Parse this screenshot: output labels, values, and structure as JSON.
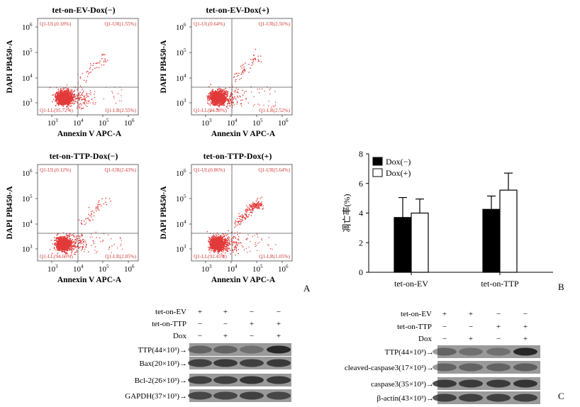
{
  "panel_letters": {
    "a": "A",
    "b": "B",
    "c": "C"
  },
  "colors": {
    "dots": "#e23a3a",
    "quadrant_text": "#d23a3a",
    "bar_dox_minus": "#000000",
    "bar_dox_plus": "#ffffff",
    "blot_band": "#222222",
    "blot_background": "#9a9a9a"
  },
  "flow_panels": [
    {
      "title": "tet-on-EV-Dox(−)",
      "xlabel": "Annexin V APC-A",
      "ylabel": "DAPI PB450-A",
      "quadrants": {
        "ul": "Q1-UL(0.18%)",
        "ur": "Q1-UR(1.55%)",
        "ll": "Q1-LL(95.72%)",
        "lr": "Q1-LR(2.55%)"
      }
    },
    {
      "title": "tet-on-EV-Dox(+)",
      "xlabel": "Annexin V APC-A",
      "ylabel": "DAPI PB450-A",
      "quadrants": {
        "ul": "Q1-UL(0.64%)",
        "ur": "Q1-UR(2.56%)",
        "ll": "Q1-LL(94.28%)",
        "lr": "Q1-LR(2.52%)"
      }
    },
    {
      "title": "tet-on-TTP-Dox(−)",
      "xlabel": "Annexin V APC-A",
      "ylabel": "DAPI PB450-A",
      "quadrants": {
        "ul": "Q1-UL(0.12%)",
        "ur": "Q1-UR(2.43%)",
        "ll": "Q1-LL(94.60%)",
        "lr": "Q1-LR(2.85%)"
      }
    },
    {
      "title": "tet-on-TTP-Dox(+)",
      "xlabel": "Annexin V APC-A",
      "ylabel": "DAPI PB450-A",
      "quadrants": {
        "ul": "Q1-UL(0.86%)",
        "ur": "Q1-UR(5.64%)",
        "ll": "Q1-LL(92.45%)",
        "lr": "Q1-LR(1.05%)"
      }
    }
  ],
  "flow_ticks": {
    "x": [
      {
        "b": "10",
        "e": "3"
      },
      {
        "b": "10",
        "e": "4"
      },
      {
        "b": "10",
        "e": "5"
      },
      {
        "b": "10",
        "e": "6"
      }
    ],
    "y": [
      {
        "b": "10",
        "e": "3"
      },
      {
        "b": "10",
        "e": "4"
      },
      {
        "b": "10",
        "e": "5"
      },
      {
        "b": "10",
        "e": "6"
      }
    ]
  },
  "chart_data": {
    "type": "bar",
    "categories": [
      "tet-on-EV",
      "tet-on-TTP"
    ],
    "series": [
      {
        "name": "Dox(−)",
        "values": [
          3.7,
          4.25
        ],
        "errors": [
          1.35,
          0.9
        ]
      },
      {
        "name": "Dox(+)",
        "values": [
          4.0,
          5.55
        ],
        "errors": [
          0.95,
          1.15
        ]
      }
    ],
    "ylabel": "凋亡率(%)",
    "ylim": [
      0,
      8
    ],
    "yticks": [
      "0",
      "2",
      "4",
      "6",
      "8"
    ],
    "legend_position": "top-left"
  },
  "blots": [
    {
      "conditions": [
        {
          "label": "tet-on-EV",
          "marks": [
            "+",
            "+",
            "−",
            "−"
          ]
        },
        {
          "label": "tet-on-TTP",
          "marks": [
            "−",
            "−",
            "+",
            "+"
          ]
        },
        {
          "label": "Dox",
          "marks": [
            "−",
            "+",
            "−",
            "+"
          ]
        }
      ],
      "rows": [
        {
          "label": "TTP(44×10³)→",
          "intensities": [
            0.45,
            0.45,
            0.35,
            0.95
          ]
        },
        {
          "label": "Bax(20×10³)→",
          "intensities": [
            0.75,
            0.8,
            0.75,
            0.8
          ]
        },
        {
          "label": "Bcl-2(26×10³)→",
          "intensities": [
            0.75,
            0.75,
            0.85,
            0.8
          ]
        },
        {
          "label": "GAPDH(37×10³)→",
          "intensities": [
            0.7,
            0.7,
            0.75,
            0.7
          ]
        }
      ]
    },
    {
      "conditions": [
        {
          "label": "tet-on-EV",
          "marks": [
            "+",
            "+",
            "−",
            "−"
          ]
        },
        {
          "label": "tet-on-TTP",
          "marks": [
            "−",
            "−",
            "+",
            "+"
          ]
        },
        {
          "label": "Dox",
          "marks": [
            "−",
            "+",
            "−",
            "+"
          ]
        }
      ],
      "rows": [
        {
          "label": "TTP(44×10³)→",
          "intensities": [
            0.45,
            0.35,
            0.35,
            0.95
          ]
        },
        {
          "label": "cleaved-caspase3(17×10³)→",
          "intensities": [
            0.45,
            0.45,
            0.45,
            0.5
          ]
        },
        {
          "label": "caspase3(35×10³)→",
          "intensities": [
            0.8,
            0.8,
            0.8,
            0.85
          ]
        },
        {
          "label": "β-actin(43×10³)→",
          "intensities": [
            0.75,
            0.75,
            0.75,
            0.75
          ]
        }
      ]
    }
  ]
}
